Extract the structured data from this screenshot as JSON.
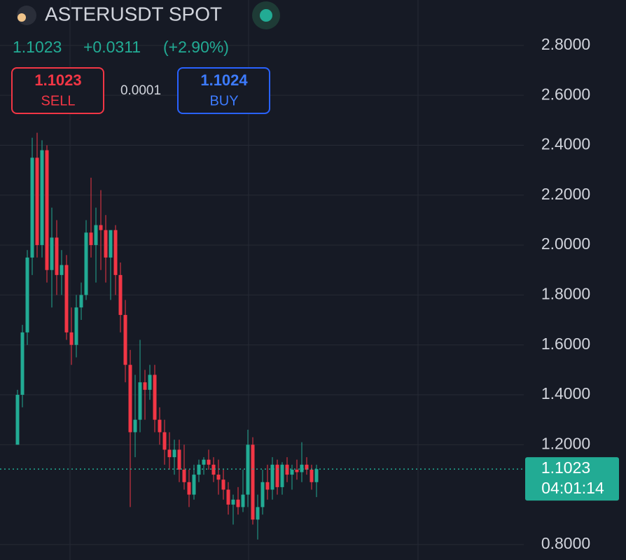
{
  "header": {
    "symbol": "ASTERUSDT SPOT",
    "price": "1.1023",
    "change": "+0.0311",
    "change_pct": "(+2.90%)",
    "sell_price": "1.1023",
    "sell_label": "SELL",
    "spread": "0.0001",
    "buy_price": "1.1024",
    "buy_label": "BUY"
  },
  "chart_data": {
    "type": "candlestick",
    "open": [
      1.2,
      1.4,
      1.65,
      1.95,
      2.35,
      2.0,
      2.38,
      1.9,
      2.03,
      1.88,
      1.92,
      1.65,
      1.6,
      1.75,
      1.8,
      2.05,
      2.0,
      2.08,
      2.06,
      1.95,
      2.06,
      1.88,
      1.72,
      1.52,
      1.25,
      1.3,
      1.45,
      1.42,
      1.48,
      1.3,
      1.25,
      1.18,
      1.15,
      1.18,
      1.1,
      1.05,
      1.0,
      1.08,
      1.12,
      1.14,
      1.12,
      1.08,
      1.06,
      1.02,
      0.96,
      0.98,
      0.95,
      1.0,
      1.2,
      0.9,
      0.95,
      1.05,
      1.02,
      1.12,
      1.03,
      1.12,
      1.08,
      1.1,
      1.09,
      1.12,
      1.1,
      1.05
    ],
    "high": [
      1.42,
      1.68,
      1.98,
      2.43,
      2.45,
      2.42,
      2.4,
      2.15,
      2.1,
      1.98,
      1.96,
      1.75,
      1.8,
      1.85,
      2.1,
      2.27,
      2.15,
      2.22,
      2.12,
      2.05,
      2.08,
      1.93,
      1.78,
      1.58,
      1.48,
      1.62,
      1.5,
      1.52,
      1.52,
      1.35,
      1.3,
      1.25,
      1.22,
      1.22,
      1.2,
      1.1,
      1.12,
      1.14,
      1.15,
      1.18,
      1.15,
      1.14,
      1.1,
      1.05,
      1.0,
      1.03,
      1.1,
      1.26,
      1.23,
      1.0,
      1.1,
      1.12,
      1.15,
      1.14,
      1.13,
      1.15,
      1.12,
      1.14,
      1.21,
      1.15,
      1.12,
      1.12
    ],
    "low": [
      1.2,
      1.35,
      1.6,
      1.88,
      1.95,
      1.95,
      1.85,
      1.75,
      1.8,
      1.8,
      1.62,
      1.52,
      1.55,
      1.7,
      1.78,
      1.95,
      1.85,
      1.9,
      1.85,
      1.78,
      1.8,
      1.65,
      1.45,
      0.95,
      1.15,
      1.25,
      1.3,
      1.38,
      1.25,
      1.2,
      1.12,
      1.1,
      1.08,
      1.05,
      1.02,
      0.95,
      0.98,
      1.05,
      1.08,
      1.1,
      1.05,
      1.0,
      0.98,
      0.92,
      0.88,
      0.92,
      0.93,
      0.95,
      0.88,
      0.82,
      0.92,
      0.98,
      0.98,
      1.0,
      1.0,
      1.05,
      1.02,
      1.06,
      1.05,
      1.08,
      1.02,
      0.99
    ],
    "close": [
      1.4,
      1.65,
      1.95,
      2.35,
      2.0,
      2.38,
      1.9,
      2.03,
      1.88,
      1.92,
      1.65,
      1.6,
      1.75,
      1.8,
      2.05,
      2.0,
      2.08,
      2.06,
      1.95,
      2.06,
      1.88,
      1.72,
      1.52,
      1.25,
      1.3,
      1.45,
      1.42,
      1.48,
      1.3,
      1.25,
      1.18,
      1.15,
      1.18,
      1.1,
      1.05,
      1.0,
      1.08,
      1.12,
      1.14,
      1.12,
      1.08,
      1.06,
      1.02,
      0.96,
      0.98,
      0.95,
      1.0,
      1.2,
      0.9,
      0.95,
      1.05,
      1.02,
      1.12,
      1.03,
      1.12,
      1.08,
      1.1,
      1.09,
      1.12,
      1.1,
      1.05,
      1.1023
    ],
    "ylim": [
      0.738,
      2.982
    ],
    "yticks": [
      {
        "value": 0.8,
        "label": "0.8000"
      },
      {
        "value": 1.2,
        "label": "1.2000"
      },
      {
        "value": 1.4,
        "label": "1.4000"
      },
      {
        "value": 1.6,
        "label": "1.6000"
      },
      {
        "value": 1.8,
        "label": "1.8000"
      },
      {
        "value": 2.0,
        "label": "2.0000"
      },
      {
        "value": 2.2,
        "label": "2.2000"
      },
      {
        "value": 2.4,
        "label": "2.4000"
      },
      {
        "value": 2.6,
        "label": "2.6000"
      },
      {
        "value": 2.8,
        "label": "2.8000"
      }
    ],
    "up_color": "#22ab94",
    "down_color": "#f23645",
    "grid": true,
    "last_price_label": "1.1023",
    "countdown": "04:01:14"
  }
}
